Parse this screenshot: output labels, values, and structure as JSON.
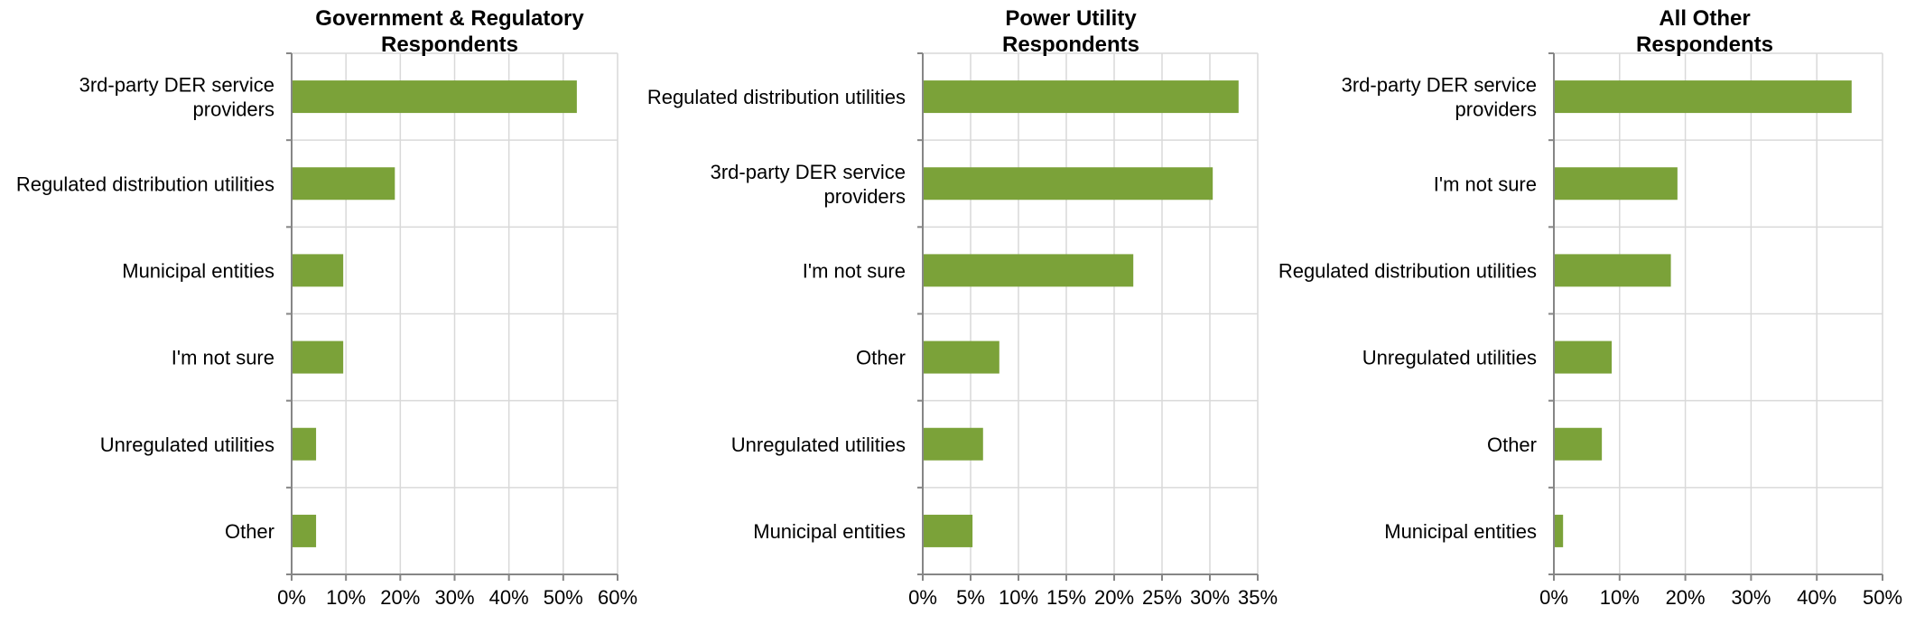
{
  "bar_color": "#7ba239",
  "grid_color": "#d9d9d9",
  "axis_color": "#868686",
  "chart_data": [
    {
      "type": "bar",
      "orientation": "horizontal",
      "title": [
        "Government & Regulatory",
        "Respondents"
      ],
      "categories": [
        [
          "3rd-party DER service",
          "providers"
        ],
        [
          "Regulated distribution utilities"
        ],
        [
          "Municipal entities"
        ],
        [
          "I'm not sure"
        ],
        [
          "Unregulated utilities"
        ],
        [
          "Other"
        ]
      ],
      "values": [
        52.5,
        19,
        9.5,
        9.5,
        4.5,
        4.5
      ],
      "xlim": [
        0,
        60
      ],
      "xticks": [
        "0%",
        "10%",
        "20%",
        "30%",
        "40%",
        "50%",
        "60%"
      ],
      "grid": true
    },
    {
      "type": "bar",
      "orientation": "horizontal",
      "title": [
        "Power Utility",
        "Respondents"
      ],
      "categories": [
        [
          "Regulated distribution utilities"
        ],
        [
          "3rd-party DER service",
          "providers"
        ],
        [
          "I'm not sure"
        ],
        [
          "Other"
        ],
        [
          "Unregulated utilities"
        ],
        [
          "Municipal entities"
        ]
      ],
      "values": [
        33,
        30.3,
        22,
        8,
        6.3,
        5.2
      ],
      "xlim": [
        0,
        35
      ],
      "xticks": [
        "0%",
        "5%",
        "10%",
        "15%",
        "20%",
        "25%",
        "30%",
        "35%"
      ],
      "grid": true
    },
    {
      "type": "bar",
      "orientation": "horizontal",
      "title": [
        "All Other",
        "Respondents"
      ],
      "categories": [
        [
          "3rd-party DER service",
          "providers"
        ],
        [
          "I'm not sure"
        ],
        [
          "Regulated distribution utilities"
        ],
        [
          "Unregulated utilities"
        ],
        [
          "Other"
        ],
        [
          "Municipal entities"
        ]
      ],
      "values": [
        45.3,
        18.8,
        17.8,
        8.8,
        7.3,
        1.4
      ],
      "xlim": [
        0,
        50
      ],
      "xticks": [
        "0%",
        "10%",
        "20%",
        "30%",
        "40%",
        "50%"
      ],
      "grid": true
    }
  ]
}
